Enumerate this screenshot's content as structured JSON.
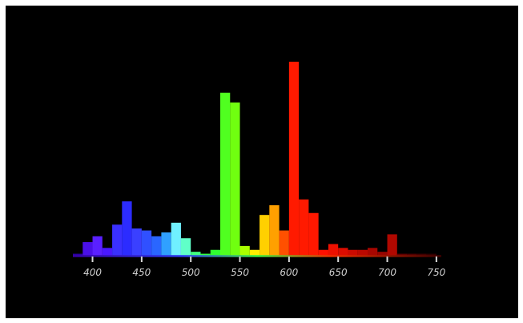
{
  "chart_data": {
    "type": "bar",
    "title": "",
    "xlabel": "",
    "ylabel": "",
    "xlim": [
      380,
      755
    ],
    "ylim": [
      0,
      100
    ],
    "grid": false,
    "legend": "none",
    "x_ticks": [
      400,
      450,
      500,
      550,
      600,
      650,
      700,
      750
    ],
    "x_tick_labels": [
      "400",
      "450",
      "500",
      "550",
      "600",
      "650",
      "700",
      "750"
    ],
    "bin_width": 10,
    "x": [
      380,
      390,
      400,
      410,
      420,
      430,
      440,
      450,
      460,
      470,
      480,
      490,
      500,
      510,
      520,
      530,
      540,
      550,
      560,
      570,
      580,
      590,
      600,
      610,
      620,
      630,
      640,
      650,
      660,
      670,
      680,
      690,
      700,
      710,
      720,
      730,
      740
    ],
    "values": [
      1,
      7,
      10,
      4,
      16,
      28,
      14,
      13,
      10,
      12,
      17,
      9,
      2,
      1,
      3,
      84,
      79,
      5,
      3,
      21,
      26,
      13,
      100,
      29,
      22,
      3,
      6,
      4,
      3,
      3,
      4,
      2,
      11,
      1,
      1,
      1,
      1
    ],
    "colors": [
      "#2a00a0",
      "#4a10e8",
      "#5a20ff",
      "#4a18ff",
      "#3a30ff",
      "#2c2cff",
      "#3a40ff",
      "#3050ff",
      "#2a66ff",
      "#30a0ff",
      "#70f0ff",
      "#60ffc8",
      "#40ff80",
      "#30ff40",
      "#30ff30",
      "#50ff20",
      "#70ff10",
      "#aaff00",
      "#ffee00",
      "#ffd000",
      "#ffa000",
      "#ff5000",
      "#ff1a00",
      "#ff1a00",
      "#ff1800",
      "#ff1000",
      "#ee1000",
      "#dd0c00",
      "#cc0a00",
      "#bb0800",
      "#a80600",
      "#960500",
      "#b00800",
      "#600000",
      "#500000",
      "#400000",
      "#300000"
    ]
  }
}
